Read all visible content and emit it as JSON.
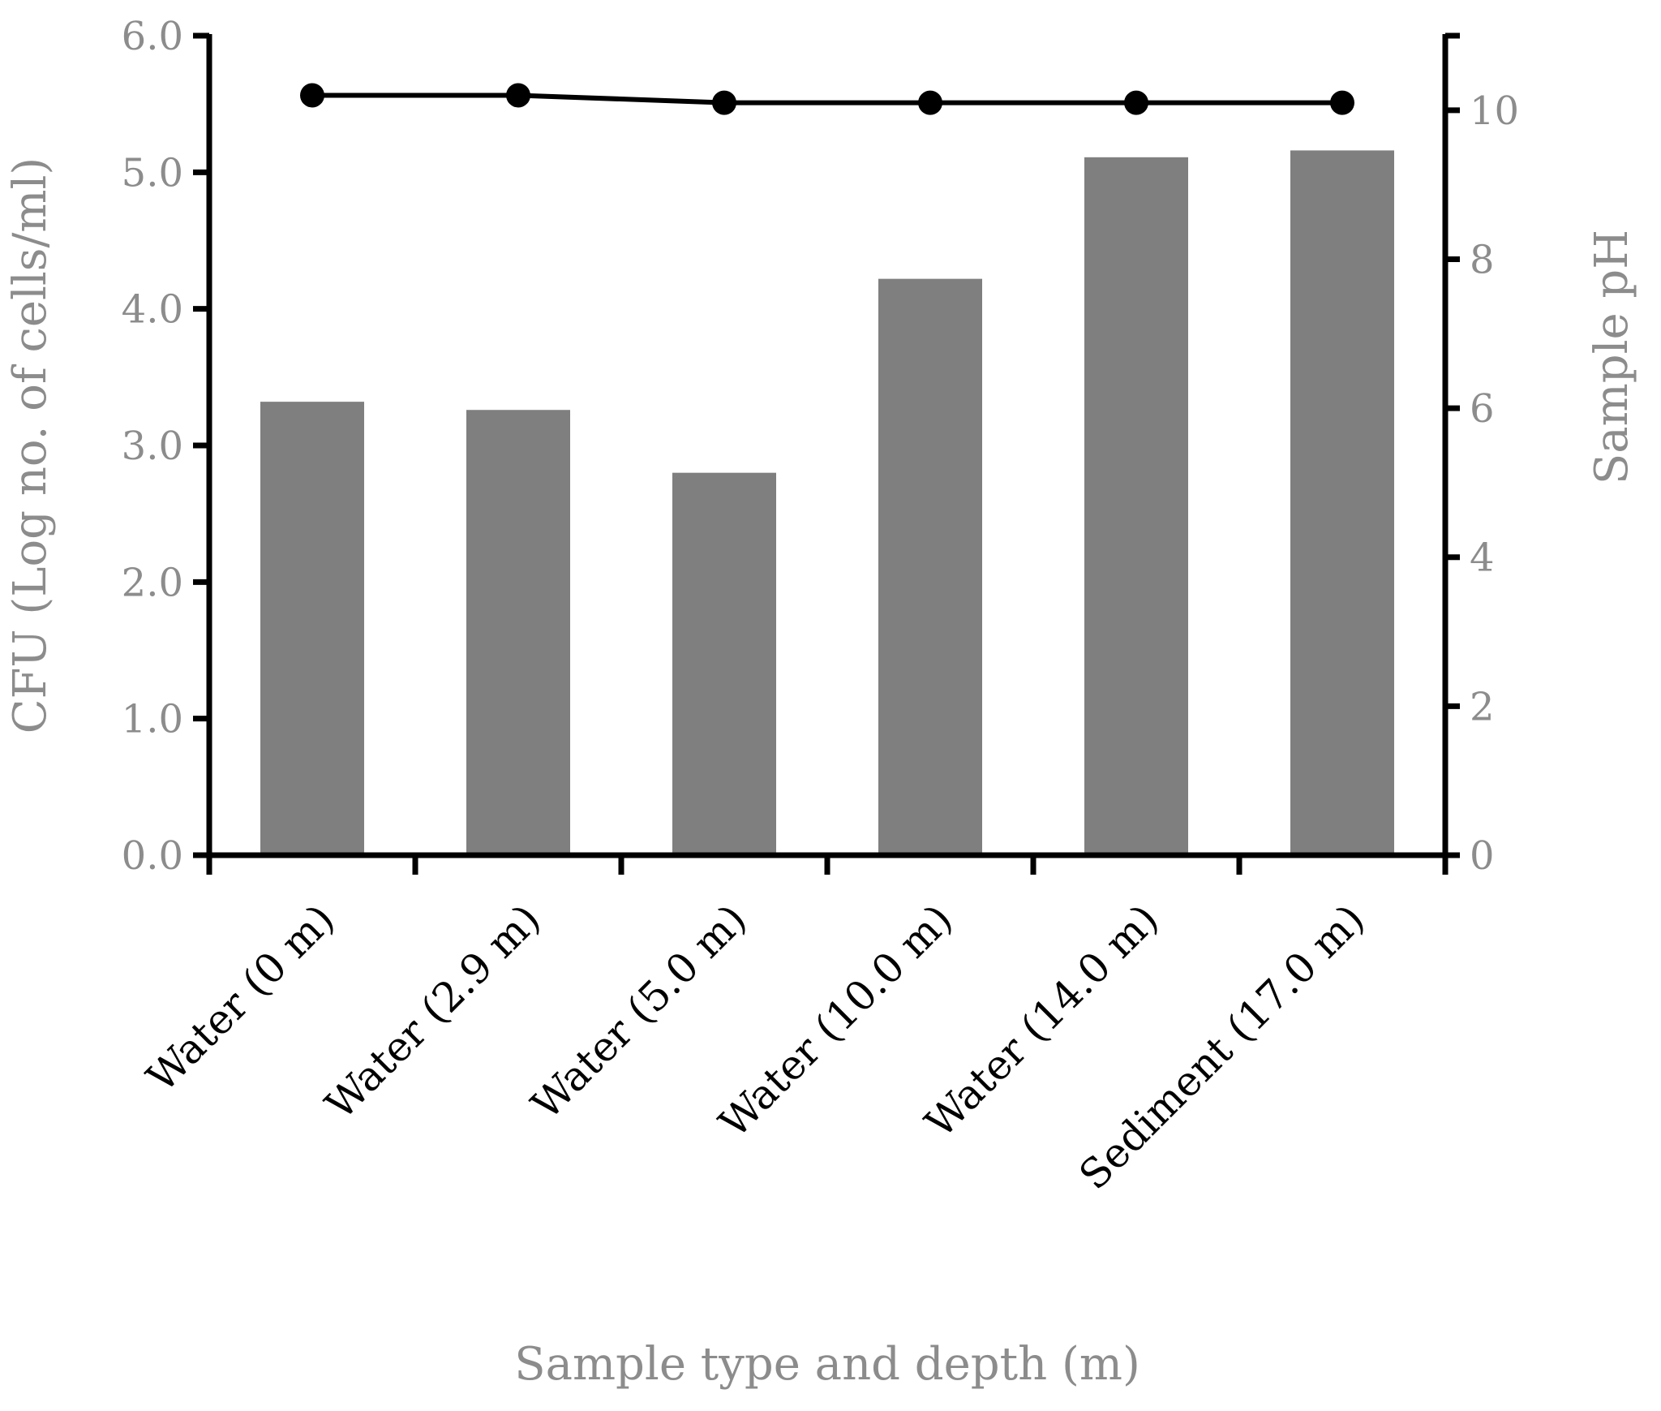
{
  "chart_data": {
    "type": "bar",
    "categories": [
      "Water (0 m)",
      "Water (2.9 m)",
      "Water (5.0 m)",
      "Water (10.0  m)",
      "Water (14.0 m)",
      "Sediment (17.0  m)"
    ],
    "series": [
      {
        "type": "bar",
        "axis": "left",
        "values": [
          3.32,
          3.26,
          2.8,
          4.22,
          5.11,
          5.16
        ],
        "color": "#7f7f7f"
      },
      {
        "type": "line",
        "axis": "right",
        "values": [
          10.2,
          10.2,
          10.1,
          10.1,
          10.1,
          10.1
        ],
        "color": "#000000"
      }
    ],
    "xlabel": "Sample type and depth (m)",
    "ylabel": "CFU (Log no. of cells/ml)",
    "y2label": "Sample pH",
    "ylim": [
      0,
      6
    ],
    "y2lim": [
      0,
      11
    ],
    "yticks": [
      "0.0",
      "1.0",
      "2.0",
      "3.0",
      "4.0",
      "5.0",
      "6.0"
    ],
    "y2ticks": [
      "0",
      "2",
      "4",
      "6",
      "8",
      "10"
    ],
    "grid": false,
    "legend": "none"
  }
}
